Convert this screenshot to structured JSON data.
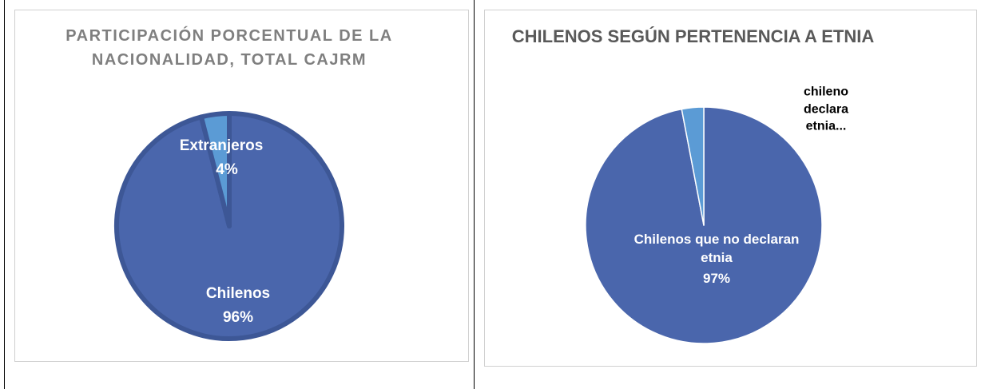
{
  "chart_data": [
    {
      "type": "pie",
      "title": "PARTICIPACIÓN PORCENTUAL DE LA NACIONALIDAD, TOTAL CAJRM",
      "categories": [
        "Chilenos",
        "Extranjeros"
      ],
      "values": [
        96,
        4
      ],
      "value_labels": [
        "96%",
        "4%"
      ],
      "colors": [
        "#4a66ac",
        "#5b9bd5"
      ]
    },
    {
      "type": "pie",
      "title": "CHILENOS SEGÚN PERTENENCIA A ETNIA",
      "categories": [
        "Chilenos que no declaran etnia",
        "chileno declara etnia..."
      ],
      "values": [
        97,
        3
      ],
      "value_labels": [
        "97%",
        null
      ],
      "colors": [
        "#4a66ac",
        "#5b9bd5"
      ]
    }
  ]
}
